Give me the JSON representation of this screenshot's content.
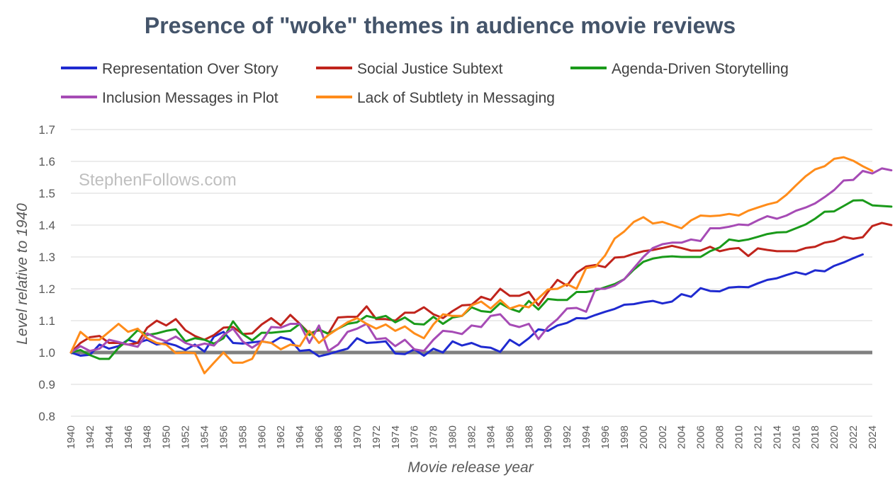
{
  "chart_data": {
    "type": "line",
    "title": "Presence of \"woke\" themes in audience movie reviews",
    "xlabel": "Movie release year",
    "ylabel": "Level relative to 1940",
    "watermark": "StephenFollows.com",
    "ylim": [
      0.8,
      1.7
    ],
    "y_ticks": [
      "0.8",
      "0.9",
      "1.0",
      "1.1",
      "1.2",
      "1.3",
      "1.4",
      "1.5",
      "1.6",
      "1.7"
    ],
    "x_tick_labels": [
      "1940",
      "1942",
      "1944",
      "1946",
      "1948",
      "1950",
      "1952",
      "1954",
      "1956",
      "1958",
      "1960",
      "1962",
      "1964",
      "1966",
      "1968",
      "1970",
      "1972",
      "1974",
      "1976",
      "1978",
      "1980",
      "1982",
      "1984",
      "1986",
      "1988",
      "1990",
      "1992",
      "1994",
      "1996",
      "1998",
      "2000",
      "2002",
      "2004",
      "2006",
      "2008",
      "2010",
      "2012",
      "2014",
      "2016",
      "2018",
      "2020",
      "2022",
      "2024"
    ],
    "reference_line": 1.0,
    "grid": true,
    "legend_position": "top",
    "x_start": 1940,
    "series": [
      {
        "name": "Representation Over Story",
        "color": "#1f2ad0",
        "values": [
          1.0,
          0.99,
          0.993,
          1.025,
          1.012,
          1.02,
          1.04,
          1.03,
          1.04,
          1.025,
          1.03,
          1.022,
          1.008,
          1.025,
          1.003,
          1.05,
          1.065,
          1.03,
          1.028,
          1.032,
          1.035,
          1.03,
          1.048,
          1.04,
          1.005,
          1.008,
          0.988,
          0.995,
          1.004,
          1.012,
          1.045,
          1.03,
          1.032,
          1.035,
          0.997,
          0.995,
          1.01,
          0.99,
          1.012,
          1.0,
          1.035,
          1.022,
          1.03,
          1.018,
          1.015,
          1.002,
          1.04,
          1.022,
          1.045,
          1.073,
          1.068,
          1.085,
          1.093,
          1.108,
          1.107,
          1.118,
          1.128,
          1.137,
          1.15,
          1.152,
          1.158,
          1.162,
          1.154,
          1.16,
          1.183,
          1.175,
          1.202,
          1.193,
          1.192,
          1.204,
          1.206,
          1.205,
          1.217,
          1.228,
          1.233,
          1.243,
          1.252,
          1.245,
          1.258,
          1.255,
          1.272,
          1.283,
          1.296,
          1.308
        ]
      },
      {
        "name": "Social Justice Subtext",
        "color": "#c0241c",
        "values": [
          1.0,
          1.03,
          1.048,
          1.052,
          1.03,
          1.03,
          1.025,
          1.03,
          1.078,
          1.1,
          1.085,
          1.105,
          1.07,
          1.052,
          1.04,
          1.055,
          1.078,
          1.08,
          1.058,
          1.06,
          1.088,
          1.108,
          1.085,
          1.118,
          1.09,
          1.06,
          1.07,
          1.06,
          1.11,
          1.112,
          1.112,
          1.145,
          1.105,
          1.105,
          1.1,
          1.125,
          1.125,
          1.142,
          1.12,
          1.108,
          1.13,
          1.148,
          1.15,
          1.175,
          1.165,
          1.2,
          1.178,
          1.178,
          1.19,
          1.148,
          1.19,
          1.228,
          1.21,
          1.25,
          1.27,
          1.275,
          1.268,
          1.298,
          1.3,
          1.31,
          1.318,
          1.322,
          1.328,
          1.335,
          1.328,
          1.32,
          1.32,
          1.332,
          1.318,
          1.325,
          1.328,
          1.303,
          1.327,
          1.322,
          1.318,
          1.318,
          1.318,
          1.328,
          1.332,
          1.345,
          1.35,
          1.363,
          1.357,
          1.362,
          1.397,
          1.407,
          1.4
        ]
      },
      {
        "name": "Agenda-Driven Storytelling",
        "color": "#1a9a1a",
        "values": [
          1.0,
          1.008,
          0.992,
          0.98,
          0.98,
          1.015,
          1.04,
          1.07,
          1.055,
          1.06,
          1.068,
          1.073,
          1.035,
          1.045,
          1.04,
          1.028,
          1.045,
          1.098,
          1.058,
          1.038,
          1.062,
          1.062,
          1.065,
          1.068,
          1.09,
          1.055,
          1.073,
          1.058,
          1.075,
          1.09,
          1.095,
          1.115,
          1.108,
          1.115,
          1.095,
          1.11,
          1.09,
          1.088,
          1.112,
          1.09,
          1.11,
          1.115,
          1.142,
          1.13,
          1.127,
          1.155,
          1.138,
          1.128,
          1.162,
          1.135,
          1.168,
          1.165,
          1.165,
          1.19,
          1.19,
          1.195,
          1.205,
          1.215,
          1.23,
          1.26,
          1.285,
          1.295,
          1.3,
          1.302,
          1.3,
          1.3,
          1.3,
          1.318,
          1.33,
          1.355,
          1.35,
          1.355,
          1.363,
          1.372,
          1.377,
          1.378,
          1.39,
          1.402,
          1.42,
          1.442,
          1.443,
          1.46,
          1.477,
          1.478,
          1.462,
          1.46,
          1.458
        ]
      },
      {
        "name": "Inclusion Messages in Plot",
        "color": "#a64bb5",
        "values": [
          1.0,
          1.02,
          1.005,
          1.012,
          1.04,
          1.033,
          1.025,
          1.018,
          1.06,
          1.045,
          1.035,
          1.05,
          1.03,
          1.02,
          1.028,
          1.022,
          1.055,
          1.075,
          1.035,
          1.015,
          1.035,
          1.08,
          1.078,
          1.09,
          1.09,
          1.03,
          1.085,
          1.005,
          1.025,
          1.065,
          1.075,
          1.09,
          1.042,
          1.045,
          1.02,
          1.04,
          1.01,
          1.005,
          1.04,
          1.068,
          1.065,
          1.058,
          1.085,
          1.08,
          1.115,
          1.12,
          1.088,
          1.08,
          1.09,
          1.042,
          1.08,
          1.105,
          1.138,
          1.14,
          1.128,
          1.2,
          1.2,
          1.21,
          1.23,
          1.265,
          1.3,
          1.328,
          1.34,
          1.345,
          1.345,
          1.355,
          1.35,
          1.39,
          1.39,
          1.395,
          1.402,
          1.4,
          1.415,
          1.428,
          1.42,
          1.43,
          1.445,
          1.455,
          1.468,
          1.488,
          1.51,
          1.54,
          1.542,
          1.57,
          1.562,
          1.578,
          1.572
        ]
      },
      {
        "name": "Lack of Subtlety in Messaging",
        "color": "#ff8c1a",
        "values": [
          1.0,
          1.065,
          1.04,
          1.04,
          1.065,
          1.09,
          1.065,
          1.075,
          1.045,
          1.03,
          1.025,
          0.998,
          1.0,
          0.998,
          0.935,
          0.968,
          1.0,
          0.968,
          0.968,
          0.98,
          1.035,
          1.03,
          1.01,
          1.025,
          1.02,
          1.068,
          1.03,
          1.055,
          1.075,
          1.095,
          1.108,
          1.09,
          1.075,
          1.088,
          1.068,
          1.082,
          1.06,
          1.045,
          1.088,
          1.12,
          1.115,
          1.115,
          1.148,
          1.16,
          1.138,
          1.165,
          1.138,
          1.148,
          1.142,
          1.17,
          1.198,
          1.2,
          1.215,
          1.2,
          1.265,
          1.27,
          1.305,
          1.358,
          1.38,
          1.41,
          1.425,
          1.405,
          1.41,
          1.4,
          1.39,
          1.415,
          1.43,
          1.428,
          1.43,
          1.435,
          1.43,
          1.445,
          1.455,
          1.465,
          1.472,
          1.495,
          1.525,
          1.553,
          1.575,
          1.585,
          1.608,
          1.613,
          1.602,
          1.585,
          1.57
        ]
      }
    ]
  }
}
